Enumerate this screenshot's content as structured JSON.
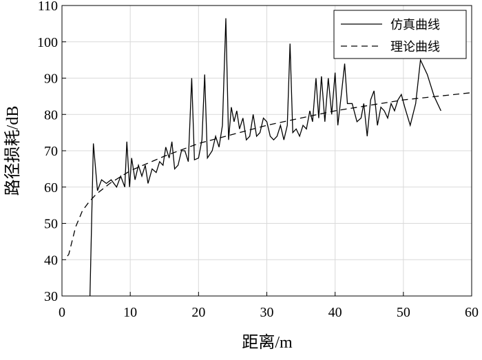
{
  "chart_data": {
    "type": "line",
    "xlabel": "距离/m",
    "ylabel": "路径损耗/dB",
    "xlim": [
      0,
      60
    ],
    "xticks": [
      0,
      10,
      20,
      30,
      40,
      50,
      60
    ],
    "ylim": [
      30,
      110
    ],
    "yticks": [
      30,
      40,
      50,
      60,
      70,
      80,
      90,
      100,
      110
    ],
    "grid": true,
    "legend": "upper right",
    "series": [
      {
        "name": "仿真曲线",
        "color": "#000000",
        "dash": false,
        "x": [
          4.1,
          4.6,
          5.2,
          5.8,
          6.5,
          7.2,
          8,
          8.6,
          9.2,
          9.5,
          9.9,
          10.2,
          10.7,
          11.2,
          11.7,
          12.2,
          12.6,
          13.2,
          13.8,
          14.3,
          14.8,
          15.2,
          15.7,
          16.1,
          16.5,
          17,
          17.5,
          18,
          18.5,
          19,
          19.4,
          20,
          20.5,
          20.9,
          21.3,
          22,
          22.5,
          23,
          23.5,
          24,
          24.4,
          24.8,
          25.2,
          25.6,
          26,
          26.5,
          27,
          27.5,
          28,
          28.5,
          29,
          29.5,
          30,
          30.5,
          31,
          31.5,
          32,
          32.5,
          33,
          33.4,
          33.8,
          34.3,
          34.8,
          35.3,
          35.8,
          36.3,
          36.7,
          37.2,
          37.6,
          38,
          38.5,
          39,
          39.5,
          40,
          40.4,
          41,
          41.4,
          41.8,
          42.5,
          43.2,
          43.8,
          44.2,
          44.7,
          45.2,
          45.7,
          46.2,
          46.7,
          47.2,
          47.7,
          48.2,
          48.7,
          49.2,
          49.7,
          50.2,
          51,
          51.8,
          52.5,
          53.5,
          54.5,
          55.5
        ],
        "values": [
          30,
          72,
          59,
          62,
          61,
          62,
          60,
          63,
          60,
          72.5,
          60,
          68,
          62,
          66,
          63,
          66,
          61,
          65,
          64,
          67,
          66,
          71,
          68,
          72.5,
          65,
          66,
          70,
          70,
          67,
          90,
          67.5,
          68,
          73,
          91,
          68,
          70,
          74,
          71,
          77,
          106.5,
          73,
          82,
          78,
          81,
          76,
          79,
          73,
          74,
          80,
          74,
          75,
          79,
          78,
          74,
          73,
          74,
          77,
          73,
          77,
          99.5,
          75,
          76,
          74,
          77,
          76,
          81,
          78,
          90,
          79,
          90.5,
          78,
          90,
          80,
          91.5,
          77,
          87,
          94,
          83,
          83,
          78,
          79,
          83,
          74,
          84,
          86.5,
          77,
          82,
          81,
          79,
          83,
          81,
          84,
          85.5,
          82,
          77,
          83,
          95,
          91,
          85,
          81
        ]
      },
      {
        "name": "理论曲线",
        "color": "#000000",
        "dash": true,
        "x": [
          0.8,
          1,
          2,
          3,
          4,
          5,
          7,
          10,
          15,
          20,
          25,
          30,
          35,
          40,
          45,
          50,
          55,
          60
        ],
        "values": [
          41,
          41.5,
          49,
          53.5,
          56,
          58,
          61,
          64.5,
          68.5,
          72,
          74.5,
          77,
          79,
          81,
          82.5,
          84,
          85,
          86
        ]
      }
    ]
  }
}
